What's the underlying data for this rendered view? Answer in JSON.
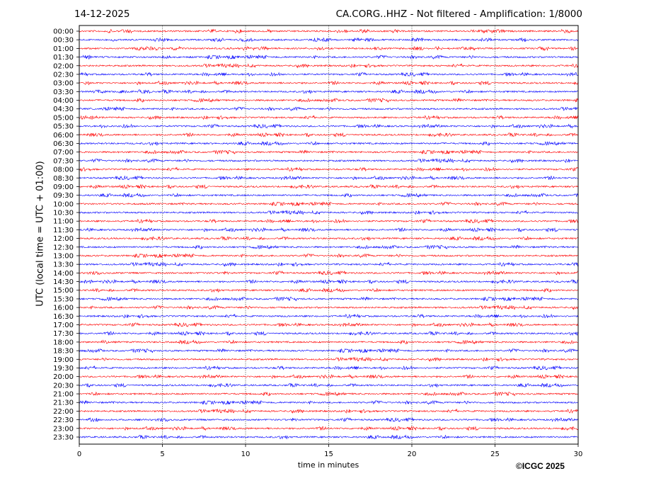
{
  "header": {
    "date": "14-12-2025",
    "title": "CA.CORG..HHZ - Not filtered - Amplification: 1/8000"
  },
  "copyright": "©ICGC 2025",
  "chart_data": {
    "type": "line",
    "subtype": "helicorder",
    "xlabel": "time in minutes",
    "ylabel": "UTC (local time = UTC + 01:00)",
    "xlim": [
      0,
      30
    ],
    "xticks": [
      "0",
      "5",
      "10",
      "15",
      "20",
      "25",
      "30"
    ],
    "grid": "vertical dotted lines every 5 minutes",
    "rows": [
      "00:00",
      "00:30",
      "01:00",
      "01:30",
      "02:00",
      "02:30",
      "03:00",
      "03:30",
      "04:00",
      "04:30",
      "05:00",
      "05:30",
      "06:00",
      "06:30",
      "07:00",
      "07:30",
      "08:00",
      "08:30",
      "09:00",
      "09:30",
      "10:00",
      "10:30",
      "11:00",
      "11:30",
      "12:00",
      "12:30",
      "13:00",
      "13:30",
      "14:00",
      "14:30",
      "15:00",
      "15:30",
      "16:00",
      "16:30",
      "17:00",
      "17:30",
      "18:00",
      "18:30",
      "19:00",
      "19:30",
      "20:00",
      "20:30",
      "21:00",
      "21:30",
      "22:00",
      "22:30",
      "23:00",
      "23:30"
    ],
    "trace_colors": [
      "#ff0000",
      "#0000ff"
    ],
    "signal": "low-amplitude background noise, no events"
  }
}
